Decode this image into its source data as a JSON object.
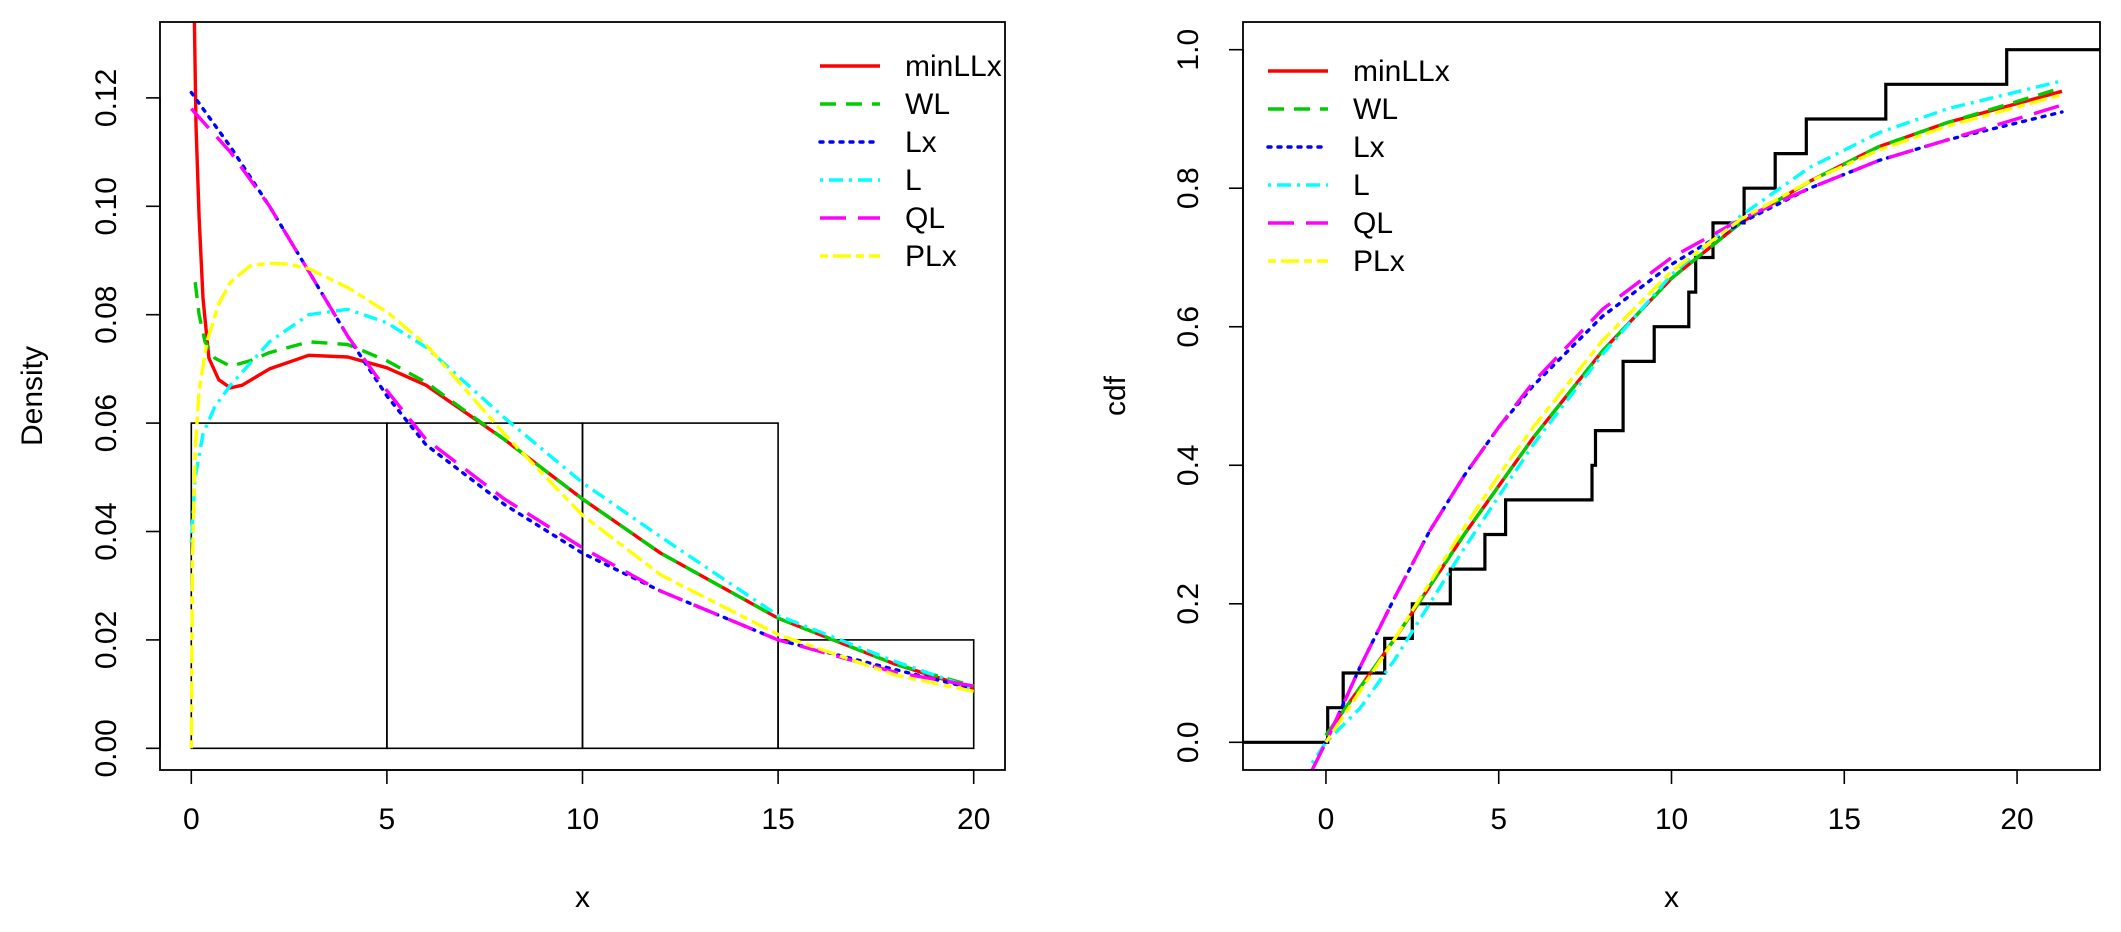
{
  "chart_data": [
    {
      "type": "line",
      "title": "",
      "xlabel": "x",
      "ylabel": "Density",
      "xlim": [
        -0.8,
        20.8
      ],
      "ylim": [
        -0.004,
        0.134
      ],
      "xticks": [
        "0",
        "5",
        "10",
        "15",
        "20"
      ],
      "yticks": [
        "0.00",
        "0.02",
        "0.04",
        "0.06",
        "0.08",
        "0.10",
        "0.12"
      ],
      "legend_position": "top-right",
      "histogram": {
        "bins": [
          [
            0,
            5
          ],
          [
            5,
            10
          ],
          [
            10,
            15
          ],
          [
            15,
            20
          ]
        ],
        "density": [
          0.06,
          0.06,
          0.06,
          0.02
        ]
      },
      "series": [
        {
          "name": "minLLx",
          "color": "#ff0000",
          "dash": "solid",
          "x": [
            0.08,
            0.12,
            0.2,
            0.3,
            0.45,
            0.7,
            1.0,
            1.3,
            2,
            3,
            4,
            5,
            6,
            8,
            10,
            12,
            15,
            18,
            20
          ],
          "y": [
            0.134,
            0.115,
            0.098,
            0.083,
            0.072,
            0.068,
            0.0665,
            0.067,
            0.07,
            0.0725,
            0.0722,
            0.0702,
            0.067,
            0.057,
            0.046,
            0.036,
            0.024,
            0.0155,
            0.011
          ]
        },
        {
          "name": "WL",
          "color": "#00cd00",
          "dash": "dash",
          "x": [
            0.1,
            0.2,
            0.35,
            0.6,
            1,
            1.5,
            2,
            3,
            4,
            5,
            6,
            8,
            10,
            12,
            15,
            18,
            20
          ],
          "y": [
            0.086,
            0.08,
            0.075,
            0.072,
            0.0705,
            0.0715,
            0.073,
            0.075,
            0.0745,
            0.0715,
            0.0675,
            0.057,
            0.046,
            0.036,
            0.024,
            0.0155,
            0.0115
          ]
        },
        {
          "name": "Lx",
          "color": "#0000ff",
          "dash": "dot",
          "x": [
            0,
            1,
            2,
            3,
            4,
            5,
            6,
            8,
            10,
            12,
            15,
            18,
            20
          ],
          "y": [
            0.121,
            0.111,
            0.1,
            0.088,
            0.076,
            0.065,
            0.056,
            0.045,
            0.036,
            0.029,
            0.02,
            0.0145,
            0.011
          ]
        },
        {
          "name": "L",
          "color": "#00ffff",
          "dash": "dashdot",
          "x": [
            0,
            0.1,
            0.3,
            0.6,
            1,
            1.5,
            2,
            3,
            4,
            5,
            6,
            8,
            10,
            12,
            15,
            18,
            20
          ],
          "y": [
            0.038,
            0.05,
            0.058,
            0.063,
            0.067,
            0.071,
            0.075,
            0.08,
            0.081,
            0.0785,
            0.074,
            0.061,
            0.049,
            0.039,
            0.0245,
            0.016,
            0.011
          ]
        },
        {
          "name": "QL",
          "color": "#ff00ff",
          "dash": "longdash",
          "x": [
            0,
            1,
            2,
            3,
            4,
            5,
            6,
            8,
            10,
            12,
            15,
            18,
            20
          ],
          "y": [
            0.118,
            0.11,
            0.1,
            0.088,
            0.076,
            0.066,
            0.057,
            0.046,
            0.037,
            0.029,
            0.02,
            0.014,
            0.0115
          ]
        },
        {
          "name": "PLx",
          "color": "#ffff00",
          "dash": "twodash",
          "x": [
            0,
            0.03,
            0.1,
            0.2,
            0.4,
            0.7,
            1,
            1.5,
            2,
            2.5,
            3,
            4,
            5,
            6,
            8,
            10,
            12,
            15,
            18,
            20
          ],
          "y": [
            0.0,
            0.035,
            0.055,
            0.066,
            0.075,
            0.082,
            0.086,
            0.089,
            0.0895,
            0.0893,
            0.0885,
            0.085,
            0.0805,
            0.0745,
            0.058,
            0.043,
            0.032,
            0.021,
            0.0135,
            0.0105
          ]
        }
      ]
    },
    {
      "type": "line",
      "title": "",
      "xlabel": "x",
      "ylabel": "cdf",
      "xlim": [
        -2.4,
        22.4
      ],
      "ylim": [
        -0.04,
        1.04
      ],
      "xticks": [
        "0",
        "5",
        "10",
        "15",
        "20"
      ],
      "yticks": [
        "0.0",
        "0.2",
        "0.4",
        "0.6",
        "0.8",
        "1.0"
      ],
      "legend_position": "top-left",
      "ecdf": {
        "color": "#000000",
        "x": [
          -2.4,
          0.05,
          0.5,
          1.2,
          1.7,
          2.5,
          3.6,
          4.6,
          5.2,
          7.7,
          7.8,
          8.6,
          9.5,
          10.5,
          10.7,
          11.2,
          12.1,
          13.0,
          13.9,
          16.2,
          19.7
        ],
        "y": [
          0.0,
          0.05,
          0.1,
          0.1,
          0.15,
          0.2,
          0.25,
          0.3,
          0.35,
          0.4,
          0.45,
          0.55,
          0.6,
          0.65,
          0.7,
          0.75,
          0.8,
          0.85,
          0.9,
          0.95,
          1.0
        ],
        "x_end": 22.4
      },
      "series": [
        {
          "name": "minLLx",
          "color": "#ff0000",
          "dash": "solid",
          "x": [
            0,
            1,
            2,
            3,
            4,
            5,
            6,
            8,
            10,
            12,
            14,
            16,
            18,
            21.3
          ],
          "y": [
            0.01,
            0.08,
            0.15,
            0.225,
            0.3,
            0.37,
            0.44,
            0.565,
            0.67,
            0.75,
            0.81,
            0.86,
            0.895,
            0.94
          ]
        },
        {
          "name": "WL",
          "color": "#00cd00",
          "dash": "dash",
          "x": [
            0,
            1,
            2,
            3,
            4,
            5,
            6,
            8,
            10,
            12,
            14,
            16,
            18,
            21.3
          ],
          "y": [
            0.01,
            0.08,
            0.15,
            0.225,
            0.3,
            0.37,
            0.44,
            0.565,
            0.67,
            0.75,
            0.81,
            0.86,
            0.895,
            0.945
          ]
        },
        {
          "name": "Lx",
          "color": "#0000ff",
          "dash": "dot",
          "x": [
            0,
            1,
            2,
            3,
            4,
            5,
            6,
            8,
            10,
            12,
            14,
            16,
            18,
            21.3
          ],
          "y": [
            0.0,
            0.11,
            0.21,
            0.305,
            0.385,
            0.455,
            0.515,
            0.615,
            0.69,
            0.75,
            0.8,
            0.84,
            0.87,
            0.91
          ]
        },
        {
          "name": "L",
          "color": "#00ffff",
          "dash": "dashdot",
          "x": [
            -0.4,
            0,
            1,
            2,
            3,
            4,
            5,
            6,
            8,
            10,
            12,
            14,
            16,
            18,
            21.3
          ],
          "y": [
            -0.03,
            0.0,
            0.05,
            0.12,
            0.2,
            0.28,
            0.355,
            0.43,
            0.56,
            0.675,
            0.76,
            0.83,
            0.88,
            0.915,
            0.955
          ]
        },
        {
          "name": "QL",
          "color": "#ff00ff",
          "dash": "longdash",
          "x": [
            -0.4,
            0,
            1,
            2,
            3,
            4,
            5,
            6,
            8,
            10,
            12,
            14,
            16,
            18,
            21.3
          ],
          "y": [
            -0.04,
            0.0,
            0.11,
            0.21,
            0.305,
            0.385,
            0.455,
            0.52,
            0.625,
            0.7,
            0.755,
            0.8,
            0.84,
            0.87,
            0.92
          ]
        },
        {
          "name": "PLx",
          "color": "#ffff00",
          "dash": "twodash",
          "x": [
            0,
            1,
            2,
            3,
            4,
            5,
            6,
            8,
            10,
            12,
            14,
            16,
            18,
            21.3
          ],
          "y": [
            0.0,
            0.075,
            0.15,
            0.23,
            0.31,
            0.385,
            0.455,
            0.58,
            0.68,
            0.755,
            0.81,
            0.855,
            0.89,
            0.935
          ]
        }
      ]
    }
  ]
}
